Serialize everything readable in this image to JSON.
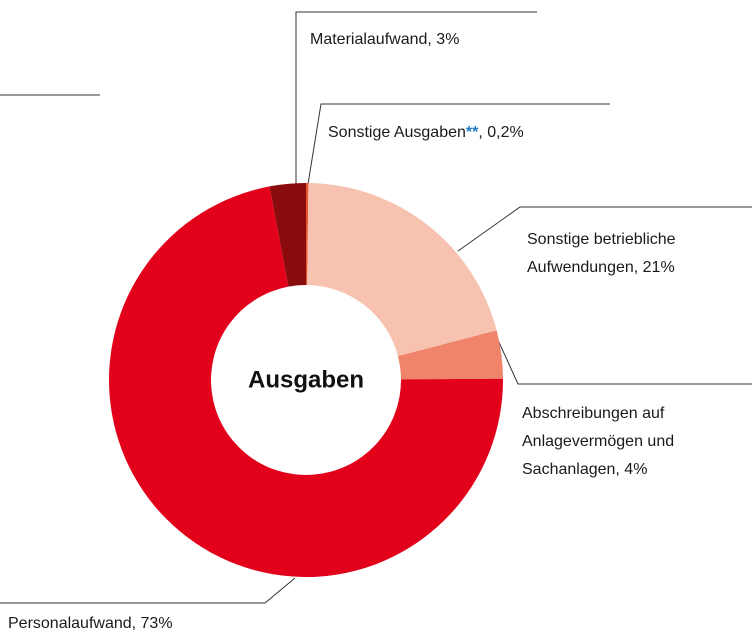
{
  "chart_data": {
    "type": "donut",
    "center_label": "Ausgaben",
    "categories": [
      "Sonstige Ausgaben",
      "Sonstige betriebliche Aufwendungen",
      "Abschreibungen auf Anlagevermögen und Sachanlagen",
      "Personalaufwand",
      "Materialaufwand"
    ],
    "values": [
      0.2,
      21,
      4,
      73,
      3
    ],
    "colors": [
      "#e8542f",
      "#f7c3b0",
      "#ef846b",
      "#e2001a",
      "#8a0b0b"
    ],
    "labels": [
      [
        [
          "Sonstige Ausgaben",
          "**",
          ", 0,2%"
        ]
      ],
      [
        [
          "Sonstige betriebliche"
        ],
        [
          "Aufwendungen, 21%"
        ]
      ],
      [
        [
          "Abschreibungen auf"
        ],
        [
          "Anlagevermögen und"
        ],
        [
          "Sachanlagen, 4%"
        ]
      ],
      [
        [
          "Personalaufwand, 73%"
        ]
      ],
      [
        [
          "Materialaufwand, 3%"
        ]
      ]
    ],
    "highlight_color": "#1f78c8"
  }
}
